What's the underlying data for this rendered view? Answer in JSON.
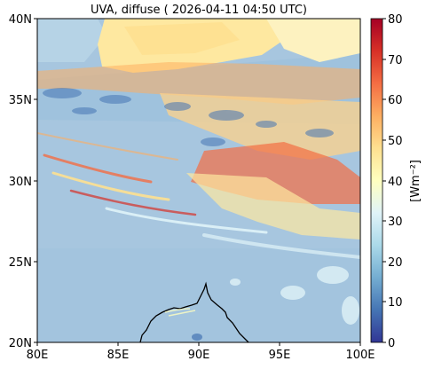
{
  "title": "UVA, diffuse ( 2026-04-11 04:50 UTC)",
  "map": {
    "lon_range": [
      80,
      100
    ],
    "lat_range": [
      20,
      40
    ],
    "x_ticks": [
      "80E",
      "85E",
      "90E",
      "95E",
      "100E"
    ],
    "y_ticks": [
      "20N",
      "25N",
      "30N",
      "35N",
      "40N"
    ]
  },
  "colorbar": {
    "label": "[Wm⁻²]",
    "range": [
      0,
      80
    ],
    "ticks": [
      "0",
      "10",
      "20",
      "30",
      "40",
      "50",
      "60",
      "70",
      "80"
    ],
    "colormap": [
      "#313695",
      "#4575b4",
      "#74add1",
      "#abd9e9",
      "#e0f3f8",
      "#ffffbf",
      "#fee090",
      "#fdae61",
      "#f46d43",
      "#d73027",
      "#a50026"
    ]
  },
  "field": {
    "background_value": 20,
    "dominant_color": "#a7c6df",
    "coastline_color": "#000000"
  }
}
